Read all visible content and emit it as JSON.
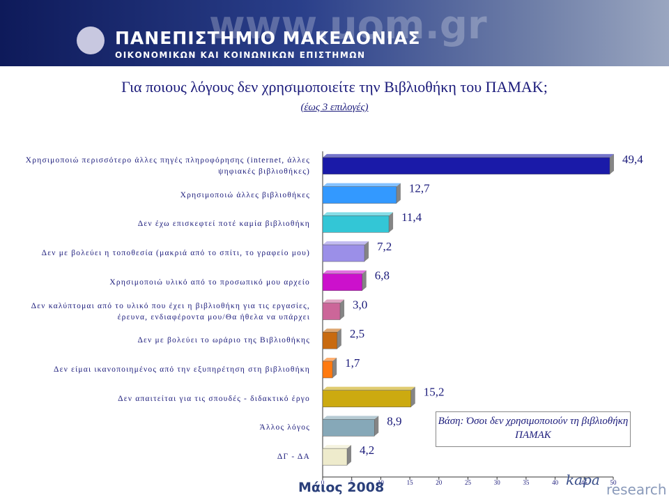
{
  "header": {
    "url": "www.uom.gr",
    "name": "ΠΑΝΕΠΙΣΤΗΜΙΟ ΜΑΚΕΔΟΝΙΑΣ",
    "subtitle": "ΟΙΚΟΝΟΜΙΚΩΝ ΚΑΙ ΚΟΙΝΩΝΙΚΩΝ ΕΠΙΣΤΗΜΩΝ"
  },
  "chart_data": {
    "type": "bar",
    "orientation": "horizontal",
    "title": "Για ποιους λόγους δεν χρησιμοποιείτε την Βιβλιοθήκη του ΠΑΜΑΚ;",
    "subtitle": "(έως 3 επιλογές)",
    "categories": [
      "Χρησιμοποιώ περισσότερο άλλες πηγές πληροφόρησης (internet, άλλες ψηφιακές βιβλιοθήκες)",
      "Χρησιμοποιώ άλλες βιβλιοθήκες",
      "Δεν έχω επισκεφτεί ποτέ καμία βιβλιοθήκη",
      "Δεν με βολεύει η τοποθεσία (μακριά από το σπίτι, το γραφείο μου)",
      "Χρησιμοποιώ υλικό από το προσωπικό μου αρχείο",
      "Δεν καλύπτομαι από το υλικό που έχει η βιβλιοθήκη για τις εργασίες, έρευνα, ενδιαφέροντα μου/Θα ήθελα να υπάρχει",
      "Δεν με βολεύει το ωράριο της Βιβλιοθήκης",
      "Δεν είμαι ικανοποιημένος από την εξυπηρέτηση στη βιβλιοθήκη",
      "Δεν απαιτείται για τις σπουδές - διδακτικό έργο",
      "Άλλος λόγος",
      "ΔΓ - ΔΑ"
    ],
    "values": [
      49.4,
      12.7,
      11.4,
      7.2,
      6.8,
      3.0,
      2.5,
      1.7,
      15.2,
      8.9,
      4.2
    ],
    "value_labels": [
      "49,4",
      "12,7",
      "11,4",
      "7,2",
      "6,8",
      "3,0",
      "2,5",
      "1,7",
      "15,2",
      "8,9",
      "4,2"
    ],
    "colors": [
      "#1a1aa8",
      "#3399ff",
      "#33c6d6",
      "#9b8fe8",
      "#cc11cc",
      "#cc6699",
      "#c86a10",
      "#ff7a10",
      "#ccaa10",
      "#86a8b8",
      "#eeebcc"
    ],
    "xlim": [
      0,
      50
    ],
    "xticks": [
      0,
      5,
      10,
      15,
      20,
      25,
      30,
      35,
      40,
      45,
      50
    ],
    "note": "Βάση: Όσοι δεν χρησιμοποιούν τη βιβλιοθήκη ΠΑΜΑΚ"
  },
  "footer": {
    "date": "Μάιος 2008",
    "logo": "kapa",
    "logo_sub": "research"
  }
}
